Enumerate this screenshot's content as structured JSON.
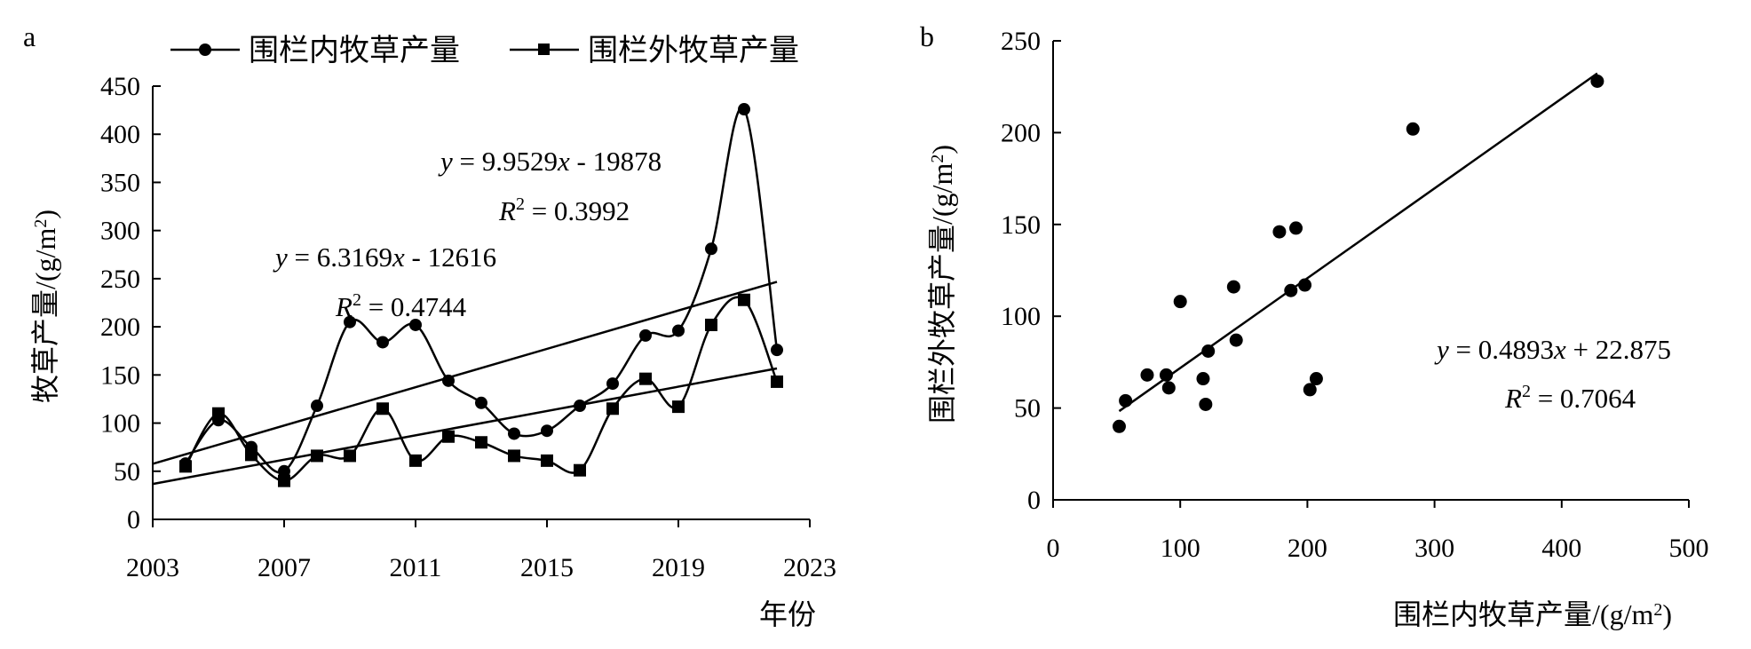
{
  "chart_data": [
    {
      "panel_label": "a",
      "type": "line",
      "xlabel": "年份",
      "ylabel_main": "牧草产量",
      "ylabel_unit_prefix": "/(g/m",
      "ylabel_unit_exp": "2",
      "ylabel_unit_suffix": ")",
      "xlim": [
        2003,
        2023
      ],
      "ylim": [
        0,
        450
      ],
      "xticks": [
        2003,
        2007,
        2011,
        2015,
        2019,
        2023
      ],
      "yticks": [
        0,
        50,
        100,
        150,
        200,
        250,
        300,
        350,
        400,
        450
      ],
      "legend_position": "top",
      "x": [
        2004,
        2005,
        2006,
        2007,
        2008,
        2009,
        2010,
        2011,
        2012,
        2013,
        2014,
        2015,
        2016,
        2017,
        2018,
        2019,
        2020,
        2021,
        2022
      ],
      "series": [
        {
          "name": "围栏内牧草产量",
          "marker": "circle",
          "values": [
            58,
            103,
            75,
            50,
            118,
            205,
            184,
            202,
            144,
            121,
            89,
            92,
            118,
            141,
            191,
            196,
            281,
            426,
            176
          ],
          "trend": {
            "slope": 9.9529,
            "intercept": -19878,
            "eq_y": "y",
            "eq_eq": " = 9.9529",
            "eq_x": "x",
            "eq_rest": " - 19878",
            "r2_r": "R",
            "r2_exp": "2",
            "r2_rest": " = 0.3992"
          }
        },
        {
          "name": "围栏外牧草产量",
          "marker": "square",
          "values": [
            55,
            110,
            67,
            40,
            66,
            66,
            115,
            61,
            86,
            80,
            66,
            61,
            51,
            115,
            146,
            117,
            202,
            228,
            143
          ],
          "trend": {
            "slope": 6.3169,
            "intercept": -12616,
            "eq_y": "y",
            "eq_eq": " = 6.3169",
            "eq_x": "x",
            "eq_rest": " - 12616",
            "r2_r": "R",
            "r2_exp": "2",
            "r2_rest": " = 0.4744"
          }
        }
      ]
    },
    {
      "panel_label": "b",
      "type": "scatter",
      "xlabel_main": "围栏内牧草产量",
      "xlabel_unit_prefix": "/(g/m",
      "xlabel_unit_exp": "2",
      "xlabel_unit_suffix": ")",
      "ylabel_main": "围栏外牧草产量",
      "ylabel_unit_prefix": "/(g/m",
      "ylabel_unit_exp": "2",
      "ylabel_unit_suffix": ")",
      "xlim": [
        0,
        500
      ],
      "ylim": [
        0,
        250
      ],
      "xticks": [
        0,
        100,
        200,
        300,
        400,
        500
      ],
      "yticks": [
        0,
        50,
        100,
        150,
        200,
        250
      ],
      "points": [
        [
          52,
          40
        ],
        [
          57,
          54
        ],
        [
          74,
          68
        ],
        [
          89,
          68
        ],
        [
          91,
          61
        ],
        [
          100,
          108
        ],
        [
          118,
          66
        ],
        [
          120,
          52
        ],
        [
          122,
          81
        ],
        [
          142,
          116
        ],
        [
          144,
          87
        ],
        [
          178,
          146
        ],
        [
          187,
          114
        ],
        [
          191,
          148
        ],
        [
          198,
          117
        ],
        [
          202,
          60
        ],
        [
          207,
          66
        ],
        [
          283,
          202
        ],
        [
          428,
          228
        ]
      ],
      "fit": {
        "slope": 0.4893,
        "intercept": 22.875,
        "x_from": 52,
        "x_to": 428,
        "eq_y": "y",
        "eq_eq": " = 0.4893",
        "eq_x": "x",
        "eq_rest": " + 22.875",
        "r2_r": "R",
        "r2_exp": "2",
        "r2_rest": " = 0.7064"
      }
    }
  ]
}
